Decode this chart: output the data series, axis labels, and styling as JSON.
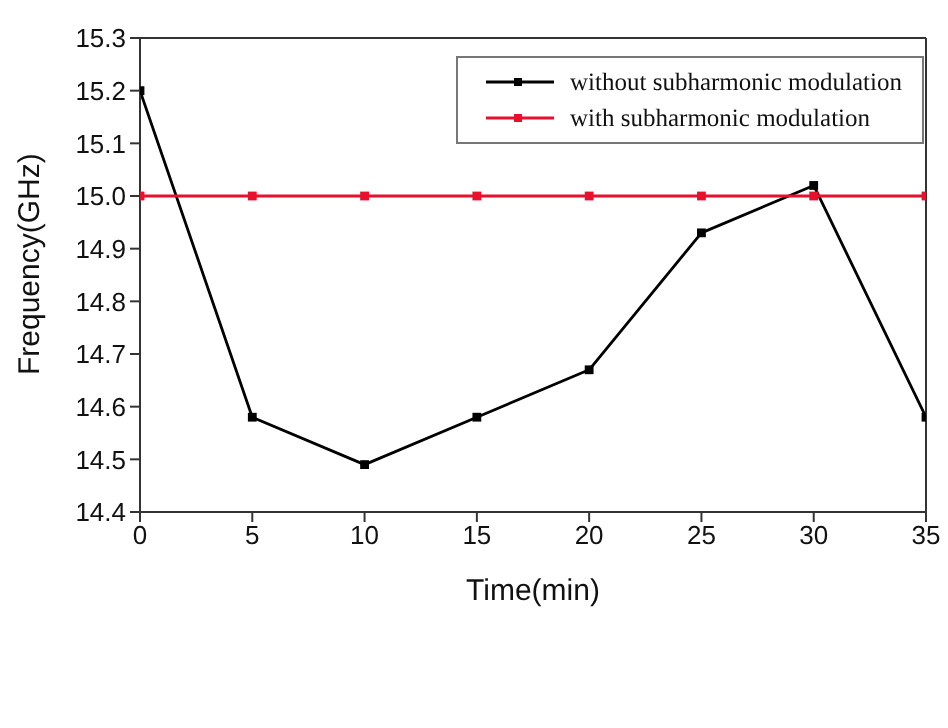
{
  "chart_data": {
    "type": "line",
    "xlabel": "Time(min)",
    "ylabel": "Frequency(GHz)",
    "x": [
      0,
      5,
      10,
      15,
      20,
      25,
      30,
      35
    ],
    "series": [
      {
        "name": "without subharmonic modulation",
        "color": "#000000",
        "values": [
          15.2,
          14.58,
          14.49,
          14.58,
          14.67,
          14.93,
          15.02,
          14.58
        ]
      },
      {
        "name": "with subharmonic modulation",
        "color": "#e8102c",
        "values": [
          15.0,
          15.0,
          15.0,
          15.0,
          15.0,
          15.0,
          15.0,
          15.0
        ]
      }
    ],
    "xlim": [
      0,
      35
    ],
    "xticks": [
      0,
      5,
      10,
      15,
      20,
      25,
      30,
      35
    ],
    "ylim": [
      14.4,
      15.3
    ],
    "yticks": [
      14.4,
      14.5,
      14.6,
      14.7,
      14.8,
      14.9,
      {
        "value": 15.0,
        "label": "15.0"
      },
      15.1,
      15.2,
      15.3
    ],
    "grid": false,
    "legend": "top right",
    "marker": "square",
    "line_style": "solid"
  }
}
